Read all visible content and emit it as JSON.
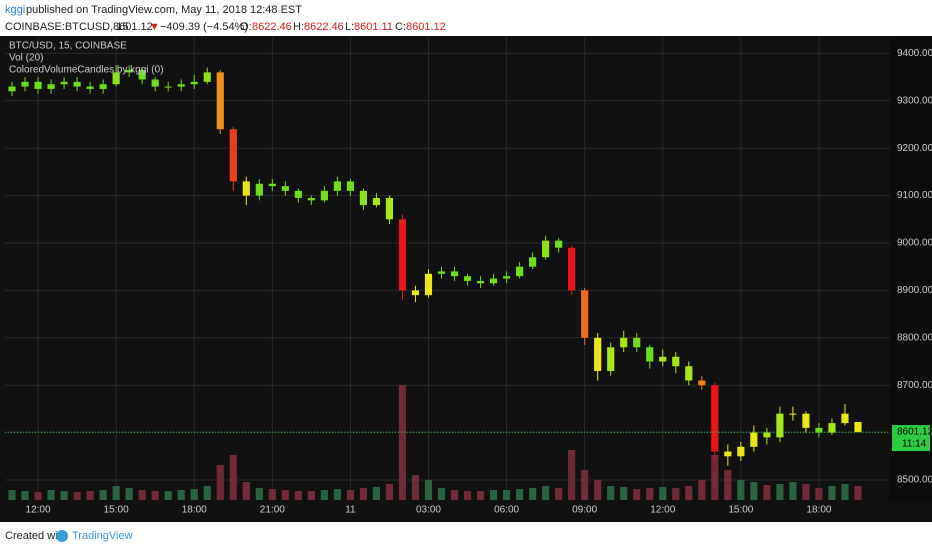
{
  "header": {
    "author": "kggi",
    "published": "published on TradingView.com, May 11, 2018 12:48 EST",
    "symbol": "COINBASE:BTCUSD, 15",
    "last": "8601.12",
    "arrow": "▼",
    "change": "−409.39 (−4.54%)",
    "o_label": "O:",
    "o": "8622.46",
    "h_label": "H:",
    "h": "8622.46",
    "l_label": "L:",
    "l": "8601.11",
    "c_label": "C:",
    "c": "8601.12"
  },
  "chart_data": {
    "type": "candlestick",
    "legend": [
      "BTC/USD, 15, COINBASE",
      "Vol (20)",
      "ColoredVolumeCandles by kggi (0)"
    ],
    "x": [
      11,
      11.5,
      12,
      12.5,
      13,
      13.5,
      14,
      14.5,
      15,
      15.5,
      16,
      16.5,
      17,
      17.5,
      18,
      18.5,
      19,
      19.5,
      20,
      20.5,
      21,
      21.5,
      22,
      22.5,
      23,
      23.5,
      24,
      24.5,
      25,
      25.5,
      26,
      26.5,
      27,
      27.5,
      28,
      28.5,
      29,
      29.5,
      30,
      30.5,
      31,
      31.5,
      32,
      32.5,
      33,
      33.5,
      34,
      34.5,
      35,
      35.5,
      36,
      36.5,
      37,
      37.5,
      38,
      38.5,
      39,
      39.5,
      40,
      40.5,
      41,
      41.5,
      42,
      42.5,
      43,
      43.5
    ],
    "open": [
      9320,
      9330,
      9340,
      9325,
      9335,
      9340,
      9330,
      9325,
      9335,
      9360,
      9365,
      9345,
      9330,
      9330,
      9335,
      9340,
      9360,
      9240,
      9130,
      9100,
      9125,
      9120,
      9110,
      9095,
      9090,
      9110,
      9130,
      9110,
      9080,
      9095,
      9050,
      8900,
      8890,
      8935,
      8940,
      8930,
      8920,
      8915,
      8925,
      8930,
      8950,
      8970,
      9005,
      8990,
      8900,
      8800,
      8730,
      8780,
      8800,
      8780,
      8750,
      8760,
      8740,
      8710,
      8700,
      8560,
      8550,
      8570,
      8600,
      8590,
      8640,
      8640,
      8610,
      8600,
      8620,
      8622.46
    ],
    "high": [
      9340,
      9350,
      9350,
      9345,
      9350,
      9350,
      9340,
      9345,
      9375,
      9375,
      9370,
      9350,
      9340,
      9345,
      9355,
      9370,
      9365,
      9245,
      9140,
      9135,
      9135,
      9130,
      9115,
      9100,
      9120,
      9140,
      9135,
      9115,
      9105,
      9100,
      9060,
      8910,
      8945,
      8950,
      8950,
      8935,
      8930,
      8935,
      8940,
      8960,
      8980,
      9015,
      9010,
      8995,
      8905,
      8810,
      8790,
      8815,
      8810,
      8785,
      8775,
      8770,
      8750,
      8720,
      8705,
      8575,
      8580,
      8615,
      8610,
      8655,
      8655,
      8645,
      8620,
      8630,
      8660,
      8622.46
    ],
    "low": [
      9310,
      9320,
      9315,
      9315,
      9325,
      9320,
      9315,
      9315,
      9330,
      9350,
      9335,
      9320,
      9320,
      9320,
      9325,
      9335,
      9230,
      9110,
      9080,
      9090,
      9110,
      9100,
      9085,
      9080,
      9085,
      9100,
      9100,
      9070,
      9075,
      9040,
      8880,
      8875,
      8885,
      8925,
      8920,
      8910,
      8905,
      8910,
      8915,
      8925,
      8945,
      8965,
      8980,
      8890,
      8785,
      8710,
      8720,
      8770,
      8770,
      8735,
      8740,
      8725,
      8700,
      8690,
      8540,
      8530,
      8540,
      8560,
      8575,
      8580,
      8625,
      8600,
      8590,
      8595,
      8615,
      8601.11
    ],
    "close": [
      9330,
      9340,
      9325,
      9335,
      9340,
      9330,
      9325,
      9335,
      9360,
      9365,
      9345,
      9330,
      9330,
      9335,
      9340,
      9360,
      9240,
      9130,
      9100,
      9125,
      9120,
      9110,
      9095,
      9090,
      9110,
      9130,
      9110,
      9080,
      9095,
      9050,
      8900,
      8890,
      8935,
      8940,
      8930,
      8920,
      8915,
      8925,
      8930,
      8950,
      8970,
      9005,
      8990,
      8900,
      8800,
      8730,
      8780,
      8800,
      8780,
      8750,
      8760,
      8740,
      8710,
      8700,
      8560,
      8550,
      8570,
      8600,
      8590,
      8640,
      8640,
      8610,
      8600,
      8620,
      8640,
      8601.12
    ],
    "colors": [
      "#6fdc1c",
      "#6fdc1c",
      "#6fdc1c",
      "#6fdc1c",
      "#6fdc1c",
      "#6fdc1c",
      "#6fdc1c",
      "#6fdc1c",
      "#8ee01a",
      "#6fdc1c",
      "#6fdc1c",
      "#6fdc1c",
      "#6fdc1c",
      "#6fdc1c",
      "#6fdc1c",
      "#8ee01a",
      "#f0901a",
      "#e8401a",
      "#e8e817",
      "#6fdc1c",
      "#6fdc1c",
      "#6fdc1c",
      "#6fdc1c",
      "#6fdc1c",
      "#6fdc1c",
      "#6fdc1c",
      "#6fdc1c",
      "#8ee01a",
      "#a8e61a",
      "#a8e61a",
      "#e8181a",
      "#e8e817",
      "#e8e817",
      "#6fdc1c",
      "#6fdc1c",
      "#6fdc1c",
      "#6fdc1c",
      "#6fdc1c",
      "#6fdc1c",
      "#6fdc1c",
      "#6fdc1c",
      "#8ee01a",
      "#6fdc1c",
      "#e8181a",
      "#f06a1a",
      "#e8e817",
      "#a8e61a",
      "#a8e61a",
      "#6fdc1c",
      "#6fdc1c",
      "#a8e61a",
      "#a8e61a",
      "#a8e61a",
      "#f0801a",
      "#e8181a",
      "#e8e817",
      "#e8e817",
      "#e8e817",
      "#a8e61a",
      "#a8e61a",
      "#e8e817",
      "#e8e817",
      "#6fdc1c",
      "#a8e61a",
      "#e8e817",
      "#e8e817"
    ],
    "volume": [
      10,
      9,
      8,
      10,
      9,
      8,
      9,
      10,
      14,
      12,
      10,
      9,
      9,
      10,
      11,
      14,
      35,
      45,
      18,
      12,
      11,
      10,
      9,
      9,
      10,
      11,
      10,
      12,
      13,
      16,
      115,
      25,
      20,
      12,
      10,
      9,
      9,
      10,
      10,
      11,
      12,
      14,
      12,
      50,
      30,
      20,
      14,
      13,
      11,
      12,
      13,
      12,
      14,
      20,
      45,
      30,
      20,
      18,
      15,
      16,
      18,
      16,
      12,
      14,
      16,
      14
    ],
    "volume_lim": [
      0,
      120
    ],
    "up_volume_color": "#2e6b48",
    "down_volume_color": "#7a2f3c",
    "xlim": [
      10.73,
      44.73
    ],
    "ylim": [
      8457.8,
      9434.6
    ],
    "xticks": [
      {
        "value": 12,
        "label": "12:00"
      },
      {
        "value": 15,
        "label": "15:00"
      },
      {
        "value": 18,
        "label": "18:00"
      },
      {
        "value": 21,
        "label": "21:00"
      },
      {
        "value": 24,
        "label": "11"
      },
      {
        "value": 27,
        "label": "03:00"
      },
      {
        "value": 30,
        "label": "06:00"
      },
      {
        "value": 33,
        "label": "09:00"
      },
      {
        "value": 36,
        "label": "12:00"
      },
      {
        "value": 39,
        "label": "15:00"
      },
      {
        "value": 42,
        "label": "18:00"
      }
    ],
    "yticks": [
      {
        "value": 8500,
        "label": "8500.00"
      },
      {
        "value": 8600,
        "label": "8600.00"
      },
      {
        "value": 8700,
        "label": "8700.00"
      },
      {
        "value": 8800,
        "label": "8800.00"
      },
      {
        "value": 8900,
        "label": "8900.00"
      },
      {
        "value": 9000,
        "label": "9000.00"
      },
      {
        "value": 9100,
        "label": "9100.00"
      },
      {
        "value": 9200,
        "label": "9200.00"
      },
      {
        "value": 9300,
        "label": "9300.00"
      },
      {
        "value": 9400,
        "label": "9400.00"
      }
    ],
    "last_price": {
      "value": 8601.12,
      "label": "8601.12",
      "countdown": "11:14",
      "color": "#2ecc40"
    },
    "grid": true
  },
  "footer": {
    "created": "Created with",
    "brand": "TradingView"
  }
}
